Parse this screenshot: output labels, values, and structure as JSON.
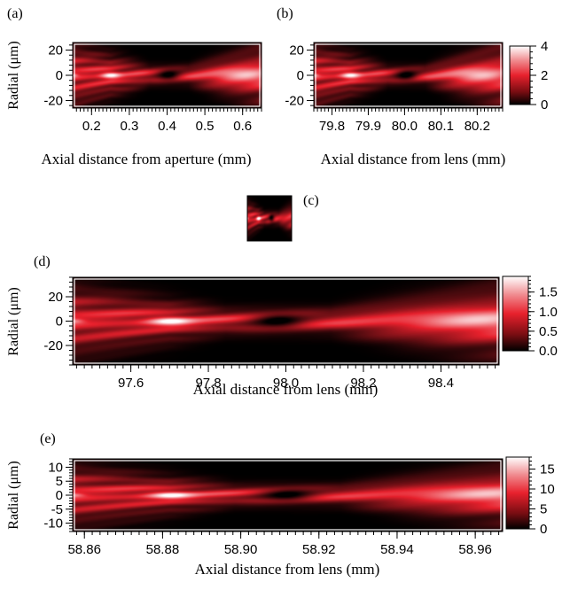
{
  "chart_data": [
    {
      "panel": "(a)",
      "type": "heatmap",
      "xlabel": "Axial distance from aperture (mm)",
      "ylabel": "Radial (μm)",
      "xlim": [
        0.15,
        0.65
      ],
      "ylim": [
        -26,
        26
      ],
      "xticks": [
        0.2,
        0.3,
        0.4,
        0.5,
        0.6
      ],
      "xtick_labels": [
        "0.2",
        "0.3",
        "0.4",
        "0.5",
        "0.6"
      ],
      "yticks": [
        -20,
        0,
        20
      ],
      "ytick_labels": [
        "-20",
        "0",
        "20"
      ],
      "focus_x": [
        0.15,
        0.25,
        0.405,
        0.61
      ],
      "zlim": [
        0,
        4
      ]
    },
    {
      "panel": "(b)",
      "type": "heatmap",
      "xlabel": "Axial distance from lens (mm)",
      "ylabel": "",
      "xlim": [
        79.75,
        80.27
      ],
      "ylim": [
        -26,
        26
      ],
      "xticks": [
        79.8,
        79.9,
        80.0,
        80.1,
        80.2
      ],
      "xtick_labels": [
        "79.8",
        "79.9",
        "80.0",
        "80.1",
        "80.2"
      ],
      "yticks": [
        -20,
        0,
        20
      ],
      "ytick_labels": [
        "-20",
        "0",
        "20"
      ],
      "focus_x": [
        79.75,
        79.85,
        80.005,
        80.21
      ],
      "zlim": [
        0,
        4
      ],
      "colorbar": {
        "ticks": [
          0,
          2,
          4
        ],
        "tick_labels": [
          "0",
          "2",
          "4"
        ]
      }
    },
    {
      "panel": "(c)",
      "type": "heatmap",
      "xlabel": "",
      "ylabel": "",
      "xlim": [
        0,
        1
      ],
      "ylim": [
        -1,
        1
      ],
      "focus_x": [
        0,
        0.25,
        0.55,
        1.2
      ],
      "zlim": [
        0,
        4
      ]
    },
    {
      "panel": "(d)",
      "type": "heatmap",
      "xlabel": "Axial distance from lens (mm)",
      "ylabel": "Radial (μm)",
      "xlim": [
        97.45,
        98.55
      ],
      "ylim": [
        -36,
        36
      ],
      "xticks": [
        97.6,
        97.8,
        98.0,
        98.2,
        98.4
      ],
      "xtick_labels": [
        "97.6",
        "97.8",
        "98.0",
        "98.2",
        "98.4"
      ],
      "yticks": [
        -20,
        0,
        20
      ],
      "ytick_labels": [
        "-20",
        "0",
        "20"
      ],
      "focus_x": [
        97.45,
        97.7,
        97.98,
        98.52
      ],
      "zlim": [
        0,
        1.9
      ],
      "colorbar": {
        "ticks": [
          0,
          0.5,
          1.0,
          1.5
        ],
        "tick_labels": [
          "0.0",
          "0.5",
          "1.0",
          "1.5"
        ]
      }
    },
    {
      "panel": "(e)",
      "type": "heatmap",
      "xlabel": "Axial distance from lens (mm)",
      "ylabel": "Radial (μm)",
      "xlim": [
        58.857,
        58.967
      ],
      "ylim": [
        -13,
        13
      ],
      "xticks": [
        58.86,
        58.88,
        58.9,
        58.92,
        58.94,
        58.96
      ],
      "xtick_labels": [
        "58.86",
        "58.88",
        "58.90",
        "58.92",
        "58.94",
        "58.96"
      ],
      "yticks": [
        -10,
        -5,
        0,
        5,
        10
      ],
      "ytick_labels": [
        "-10",
        "-5",
        "0",
        "5",
        "10"
      ],
      "focus_x": [
        58.857,
        58.882,
        58.912,
        58.966
      ],
      "zlim": [
        0,
        18
      ],
      "colorbar": {
        "ticks": [
          0,
          5,
          10,
          15
        ],
        "tick_labels": [
          "0",
          "5",
          "10",
          "15"
        ]
      }
    }
  ],
  "colors": {
    "low": "#000000",
    "mid": "#e8212d",
    "high": "#ffffff"
  }
}
